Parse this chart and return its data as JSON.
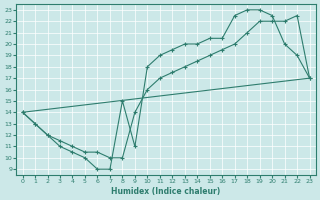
{
  "xlabel": "Humidex (Indice chaleur)",
  "bg_color": "#cce8e8",
  "line_color": "#2e7d6e",
  "xlim": [
    -0.5,
    23.5
  ],
  "ylim": [
    8.5,
    23.5
  ],
  "xticks": [
    0,
    1,
    2,
    3,
    4,
    5,
    6,
    7,
    8,
    9,
    10,
    11,
    12,
    13,
    14,
    15,
    16,
    17,
    18,
    19,
    20,
    21,
    22,
    23
  ],
  "yticks": [
    9,
    10,
    11,
    12,
    13,
    14,
    15,
    16,
    17,
    18,
    19,
    20,
    21,
    22,
    23
  ],
  "line1_x": [
    0,
    1,
    2,
    3,
    4,
    5,
    6,
    7,
    8,
    9,
    10,
    11,
    12,
    13,
    14,
    15,
    16,
    17,
    18,
    19,
    20,
    21,
    22,
    23
  ],
  "line1_y": [
    14,
    13,
    12,
    11,
    10.5,
    10,
    9,
    9,
    15,
    11,
    18,
    19,
    19.5,
    20,
    20,
    20.5,
    20.5,
    22.5,
    23,
    23,
    22.5,
    20,
    19,
    17
  ],
  "line2_x": [
    0,
    1,
    2,
    3,
    4,
    5,
    6,
    7,
    8,
    9,
    10,
    11,
    12,
    13,
    14,
    15,
    16,
    17,
    18,
    19,
    20,
    21,
    22,
    23
  ],
  "line2_y": [
    14,
    13,
    12,
    11.5,
    11,
    10.5,
    10.5,
    10,
    10,
    14,
    16,
    17,
    17.5,
    18,
    18.5,
    19,
    19.5,
    20,
    21,
    22,
    22,
    22,
    22.5,
    17
  ],
  "line3_x": [
    0,
    23
  ],
  "line3_y": [
    14,
    17
  ]
}
